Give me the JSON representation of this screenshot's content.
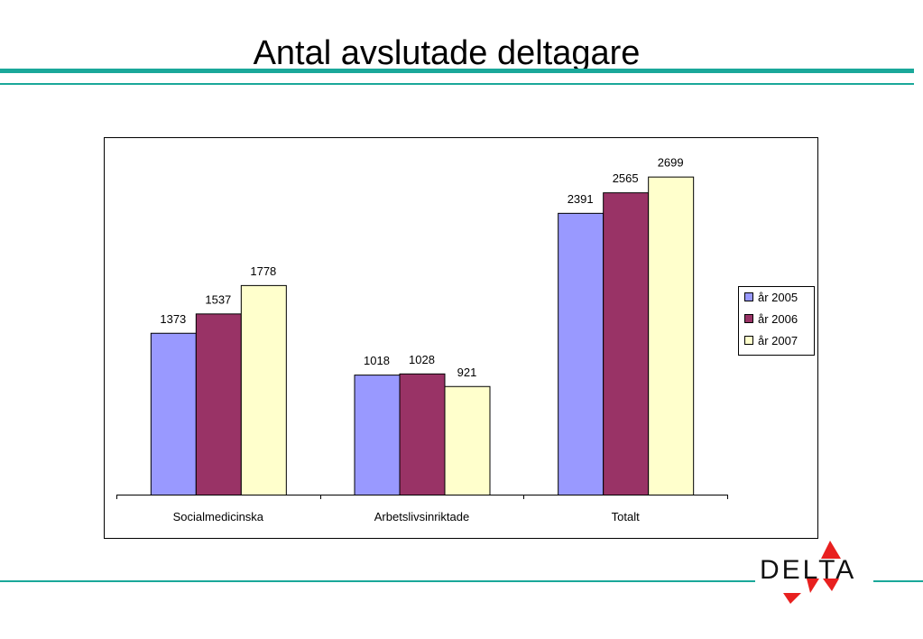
{
  "page": {
    "title": "Antal avslutade deltagare",
    "logo_text": "DELTA"
  },
  "colors": {
    "accent_rule": "#1aa89a",
    "logo_red": "#e8201f"
  },
  "chart_data": {
    "type": "bar",
    "title": "",
    "xlabel": "",
    "ylabel": "",
    "categories": [
      "Socialmedicinska",
      "Arbetslivsinriktade",
      "Totalt"
    ],
    "series": [
      {
        "name": "år 2005",
        "values": [
          1373,
          1018,
          2391
        ],
        "color": "#9999ff"
      },
      {
        "name": "år 2006",
        "values": [
          1537,
          1028,
          2565
        ],
        "color": "#993366"
      },
      {
        "name": "år 2007",
        "values": [
          1778,
          921,
          2699
        ],
        "color": "#ffffcc"
      }
    ],
    "ylim": [
      0,
      3000
    ],
    "show_data_labels": true,
    "grid": false,
    "legend_position": "right"
  }
}
